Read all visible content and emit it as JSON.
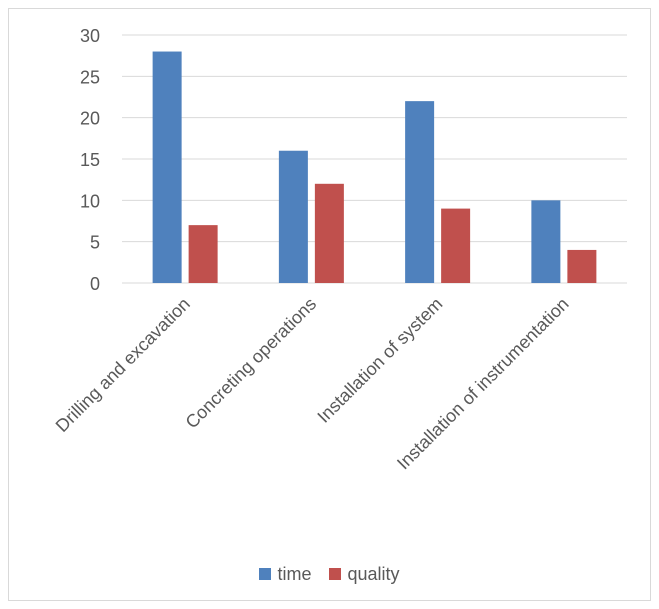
{
  "chart_data": {
    "type": "bar",
    "title": "",
    "xlabel": "",
    "ylabel": "",
    "categories": [
      "Drilling and excavation",
      "Concreting operations",
      "Installation of system",
      "Installation of instrumentation"
    ],
    "series": [
      {
        "name": "time",
        "values": [
          28,
          16,
          22,
          10
        ],
        "color": "#4f81bd"
      },
      {
        "name": "quality",
        "values": [
          7,
          12,
          9,
          4
        ],
        "color": "#c0504d"
      }
    ],
    "ylim": [
      0,
      30
    ],
    "yticks": [
      "0",
      "5",
      "10",
      "15",
      "20",
      "25",
      "30"
    ],
    "grid": true,
    "legend_position": "bottom",
    "gridline_color": "#d9d9d9",
    "text_color": "#595959"
  }
}
